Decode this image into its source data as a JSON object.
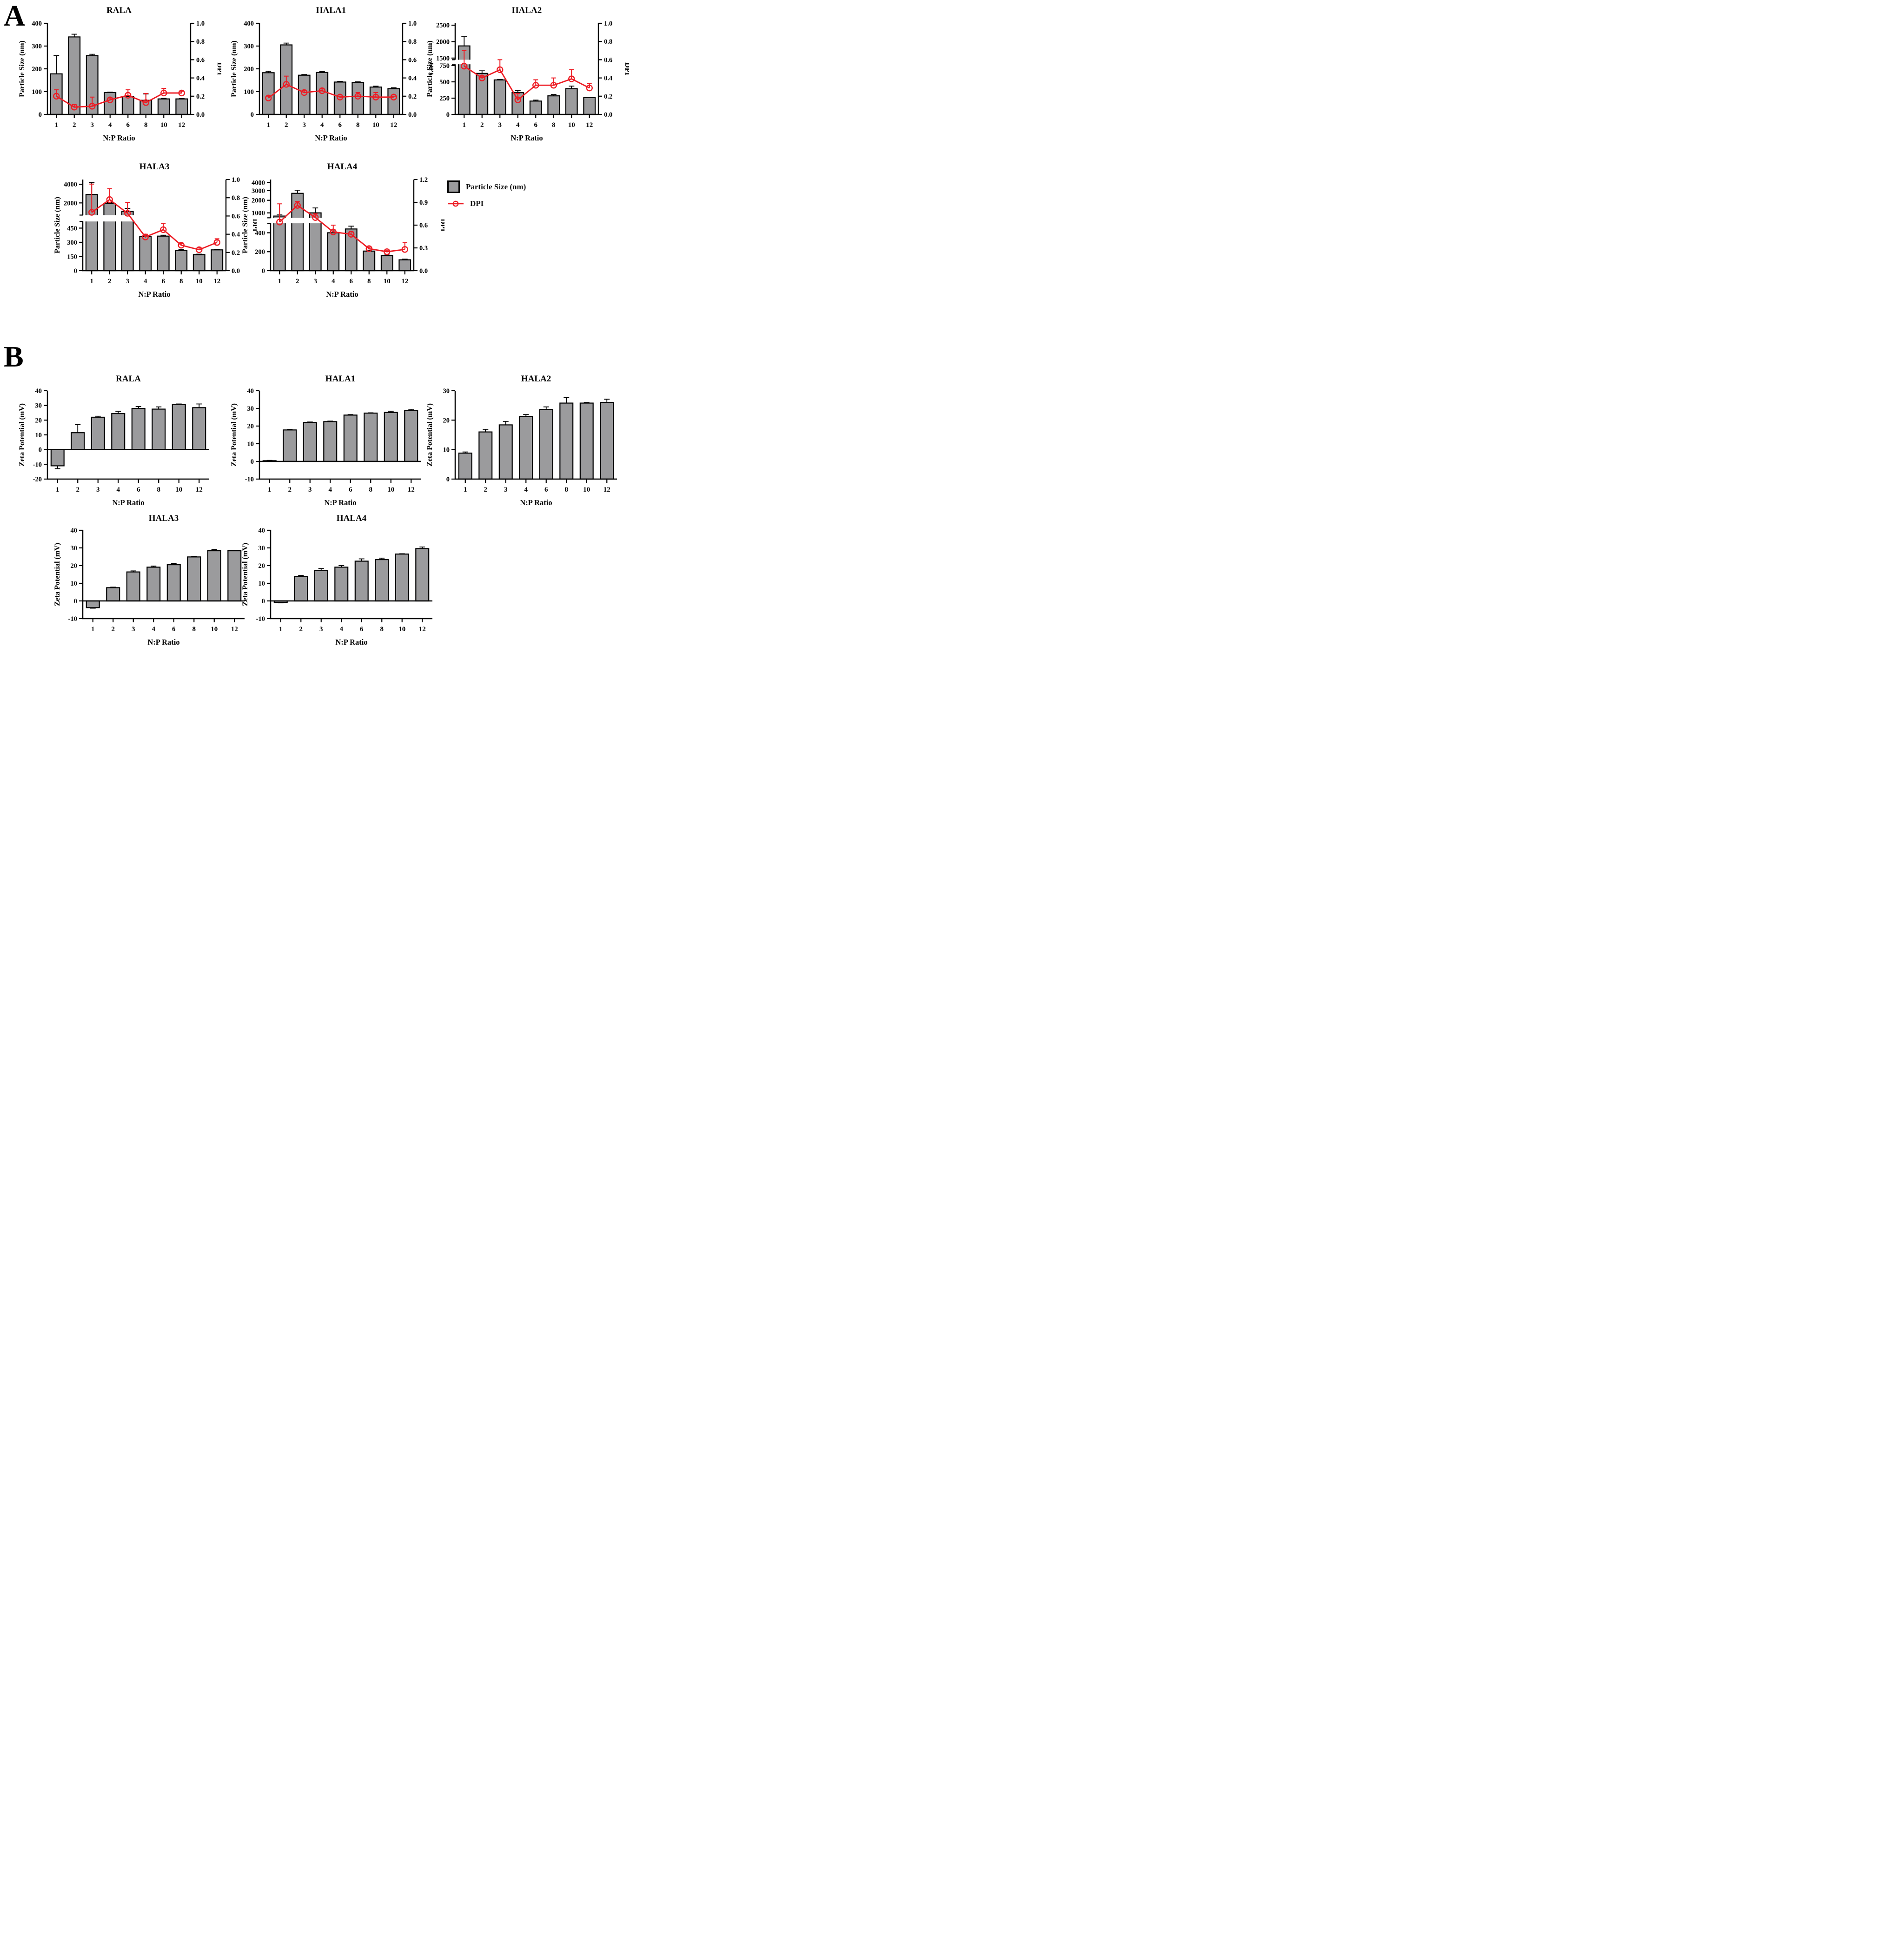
{
  "panel_a_label": "A",
  "panel_b_label": "B",
  "legend": {
    "particle_size_label": "Particle Size (nm)",
    "dpi_label": "DPI"
  },
  "colors": {
    "bar_fill": "#9b9b9d",
    "bar_edge": "#000000",
    "dpi_line": "#ed1c24",
    "axis": "#000000",
    "background": "#ffffff"
  },
  "categories": [
    "1",
    "2",
    "3",
    "4",
    "6",
    "8",
    "10",
    "12"
  ],
  "xlabel": "N:P Ratio",
  "chart_data": [
    {
      "id": "panelA-RALA",
      "panel": "A",
      "type": "bar+line",
      "title": "RALA",
      "ylabel": "Particle Size (nm)",
      "y2label": "DPI",
      "xlabel": "N:P Ratio",
      "bars": {
        "values": [
          178,
          340,
          258,
          96,
          78,
          62,
          68,
          68
        ],
        "errors": [
          80,
          12,
          6,
          2,
          4,
          28,
          3,
          2
        ]
      },
      "line": {
        "values": [
          0.2,
          0.08,
          0.09,
          0.16,
          0.21,
          0.13,
          0.235,
          0.235
        ],
        "errors": [
          0.07,
          0.03,
          0.1,
          0.02,
          0.06,
          0.1,
          0.05,
          0.02
        ]
      },
      "yaxis": {
        "segments": [
          {
            "min": 0,
            "max": 400,
            "frac": 1,
            "ticks": [
              0,
              100,
              200,
              300,
              400
            ],
            "labels": [
              "0",
              "100",
              "200",
              "300",
              "400"
            ]
          }
        ]
      },
      "y2axis": {
        "min": 0,
        "max": 1.0,
        "ticks": [
          0,
          0.2,
          0.4,
          0.6,
          0.8,
          1.0
        ],
        "labels": [
          "0.0",
          "0.2",
          "0.4",
          "0.6",
          "0.8",
          "1.0"
        ]
      }
    },
    {
      "id": "panelA-HALA1",
      "panel": "A",
      "type": "bar+line",
      "title": "HALA1",
      "ylabel": "Particle Size (nm)",
      "y2label": "DPI",
      "xlabel": "N:P Ratio",
      "bars": {
        "values": [
          183,
          305,
          172,
          184,
          142,
          140,
          120,
          113
        ],
        "errors": [
          6,
          8,
          3,
          4,
          3,
          3,
          4,
          4
        ]
      },
      "line": {
        "values": [
          0.18,
          0.33,
          0.24,
          0.26,
          0.19,
          0.2,
          0.19,
          0.19
        ],
        "errors": [
          0.02,
          0.09,
          0.02,
          0.02,
          0.01,
          0.04,
          0.05,
          0.01
        ]
      },
      "yaxis": {
        "segments": [
          {
            "min": 0,
            "max": 400,
            "frac": 1,
            "ticks": [
              0,
              100,
              200,
              300,
              400
            ],
            "labels": [
              "0",
              "100",
              "200",
              "300",
              "400"
            ]
          }
        ]
      },
      "y2axis": {
        "min": 0,
        "max": 1.0,
        "ticks": [
          0,
          0.2,
          0.4,
          0.6,
          0.8,
          1.0
        ],
        "labels": [
          "0.0",
          "0.2",
          "0.4",
          "0.6",
          "0.8",
          "1.0"
        ]
      }
    },
    {
      "id": "panelA-HALA2",
      "panel": "A",
      "type": "bar+line",
      "title": "HALA2",
      "ylabel": "Particle Size (nm)",
      "y2label": "DPI",
      "xlabel": "N:P Ratio",
      "bars": {
        "values": [
          1870,
          630,
          530,
          335,
          205,
          285,
          395,
          260
        ],
        "errors": [
          280,
          40,
          8,
          35,
          15,
          20,
          40,
          5
        ]
      },
      "line": {
        "values": [
          0.53,
          0.4,
          0.49,
          0.16,
          0.32,
          0.32,
          0.39,
          0.29
        ],
        "errors": [
          0.17,
          0.02,
          0.11,
          0.07,
          0.06,
          0.08,
          0.1,
          0.05
        ]
      },
      "yaxis": {
        "gapFrac": 0.05,
        "segments": [
          {
            "min": 0,
            "max": 770,
            "frac": 0.55,
            "ticks": [
              0,
              250,
              500,
              750
            ],
            "labels": [
              "0",
              "250",
              "500",
              "750"
            ]
          },
          {
            "min": 1450,
            "max": 2560,
            "frac": 0.4,
            "ticks": [
              1500,
              2000,
              2500
            ],
            "labels": [
              "1500",
              "2000",
              "2500"
            ]
          }
        ]
      },
      "y2axis": {
        "min": 0,
        "max": 1.0,
        "ticks": [
          0,
          0.2,
          0.4,
          0.6,
          0.8,
          1.0
        ],
        "labels": [
          "0.0",
          "0.2",
          "0.4",
          "0.6",
          "0.8",
          "1.0"
        ]
      }
    },
    {
      "id": "panelA-HALA3",
      "panel": "A",
      "type": "bar+line",
      "title": "HALA3",
      "ylabel": "Particle Size (nm)",
      "y2label": "DPI",
      "xlabel": "N:P Ratio",
      "bars": {
        "values": [
          2900,
          1950,
          1100,
          360,
          365,
          215,
          170,
          220
        ],
        "errors": [
          1300,
          100,
          300,
          15,
          10,
          8,
          5,
          5
        ]
      },
      "line": {
        "values": [
          0.64,
          0.78,
          0.63,
          0.37,
          0.45,
          0.28,
          0.23,
          0.31
        ],
        "errors": [
          0.31,
          0.12,
          0.12,
          0.03,
          0.07,
          0.02,
          0.02,
          0.04
        ]
      },
      "yaxis": {
        "gapFrac": 0.07,
        "segments": [
          {
            "min": 0,
            "max": 520,
            "frac": 0.54,
            "ticks": [
              0,
              150,
              300,
              450
            ],
            "labels": [
              "0",
              "150",
              "300",
              "450"
            ]
          },
          {
            "min": 700,
            "max": 4500,
            "frac": 0.39,
            "ticks": [
              2000,
              4000
            ],
            "labels": [
              "2000",
              "4000"
            ]
          }
        ]
      },
      "y2axis": {
        "min": 0,
        "max": 1.0,
        "ticks": [
          0,
          0.2,
          0.4,
          0.6,
          0.8,
          1.0
        ],
        "labels": [
          "0.0",
          "0.2",
          "0.4",
          "0.6",
          "0.8",
          "1.0"
        ]
      }
    },
    {
      "id": "panelA-HALA4",
      "panel": "A",
      "type": "bar+line",
      "title": "HALA4",
      "ylabel": "Particle Size (nm)",
      "y2label": "DPI",
      "xlabel": "N:P Ratio",
      "bars": {
        "values": [
          800,
          2700,
          1000,
          400,
          440,
          207,
          160,
          115
        ],
        "errors": [
          70,
          350,
          350,
          20,
          30,
          10,
          5,
          8
        ]
      },
      "line": {
        "values": [
          0.64,
          0.86,
          0.7,
          0.51,
          0.48,
          0.29,
          0.25,
          0.28
        ],
        "errors": [
          0.24,
          0.05,
          0.05,
          0.09,
          0.04,
          0.02,
          0.02,
          0.09
        ]
      },
      "yaxis": {
        "gapFrac": 0.06,
        "segments": [
          {
            "min": 0,
            "max": 500,
            "frac": 0.52,
            "ticks": [
              0,
              200,
              400
            ],
            "labels": [
              "0",
              "200",
              "400"
            ]
          },
          {
            "min": 700,
            "max": 4400,
            "frac": 0.42,
            "scale": "sqrt",
            "ticks": [
              1000,
              2000,
              3000,
              4000
            ],
            "labels": [
              "1000",
              "2000",
              "3000",
              "4000"
            ]
          }
        ]
      },
      "y2axis": {
        "min": 0,
        "max": 1.2,
        "ticks": [
          0,
          0.3,
          0.6,
          0.9,
          1.2
        ],
        "labels": [
          "0.0",
          "0.3",
          "0.6",
          "0.9",
          "1.2"
        ]
      }
    },
    {
      "id": "panelB-RALA",
      "panel": "B",
      "type": "bar",
      "title": "RALA",
      "ylabel": "Zeta Potential (mV)",
      "xlabel": "N:P Ratio",
      "bars": {
        "values": [
          -11,
          11.5,
          22,
          24.5,
          28,
          27.5,
          30.7,
          28.5
        ],
        "errors": [
          2,
          5.5,
          0.7,
          1.5,
          1.3,
          1.5,
          0.3,
          2.5
        ]
      },
      "yaxis": {
        "segments": [
          {
            "min": -20,
            "max": 40,
            "frac": 1,
            "ticks": [
              -20,
              -10,
              0,
              10,
              20,
              30,
              40
            ],
            "labels": [
              "-20",
              "-10",
              "0",
              "10",
              "20",
              "30",
              "40"
            ]
          }
        ]
      }
    },
    {
      "id": "panelB-HALA1",
      "panel": "B",
      "type": "bar",
      "title": "HALA1",
      "ylabel": "Zeta Potential (mV)",
      "xlabel": "N:P Ratio",
      "bars": {
        "values": [
          0.4,
          17.8,
          22,
          22.5,
          26.2,
          27.3,
          27.7,
          28.9
        ],
        "errors": [
          0.2,
          0.3,
          0.3,
          0.3,
          0.3,
          0.2,
          0.7,
          0.6
        ]
      },
      "yaxis": {
        "segments": [
          {
            "min": -10,
            "max": 40,
            "frac": 1,
            "ticks": [
              -10,
              0,
              10,
              20,
              30,
              40
            ],
            "labels": [
              "-10",
              "0",
              "10",
              "20",
              "30",
              "40"
            ]
          }
        ]
      }
    },
    {
      "id": "panelB-HALA2",
      "panel": "B",
      "type": "bar",
      "title": "HALA2",
      "ylabel": "Zeta Potential (mV)",
      "xlabel": "N:P Ratio",
      "bars": {
        "values": [
          8.8,
          16,
          18.4,
          21.2,
          23.6,
          25.8,
          25.8,
          26.0
        ],
        "errors": [
          0.4,
          0.9,
          1.2,
          0.7,
          0.9,
          1.9,
          0.2,
          1.1
        ]
      },
      "yaxis": {
        "segments": [
          {
            "min": 0,
            "max": 30,
            "frac": 1,
            "ticks": [
              0,
              10,
              20,
              30
            ],
            "labels": [
              "0",
              "10",
              "20",
              "30"
            ]
          }
        ]
      }
    },
    {
      "id": "panelB-HALA3",
      "panel": "B",
      "type": "bar",
      "title": "HALA3",
      "ylabel": "Zeta Potential (mV)",
      "xlabel": "N:P Ratio",
      "bars": {
        "values": [
          -3.8,
          7.5,
          16.4,
          19.1,
          20.5,
          24.9,
          28.4,
          28.4
        ],
        "errors": [
          0.3,
          0.3,
          0.6,
          0.6,
          0.6,
          0.3,
          0.6,
          0.2
        ]
      },
      "yaxis": {
        "segments": [
          {
            "min": -10,
            "max": 40,
            "frac": 1,
            "ticks": [
              -10,
              0,
              10,
              20,
              30,
              40
            ],
            "labels": [
              "-10",
              "0",
              "10",
              "20",
              "30",
              "40"
            ]
          }
        ]
      }
    },
    {
      "id": "panelB-HALA4",
      "panel": "B",
      "type": "bar",
      "title": "HALA4",
      "ylabel": "Zeta Potential (mV)",
      "xlabel": "N:P Ratio",
      "bars": {
        "values": [
          -0.8,
          13.8,
          17.3,
          19.1,
          22.5,
          23.4,
          26.5,
          29.6
        ],
        "errors": [
          0.3,
          0.6,
          1.0,
          0.9,
          1.3,
          0.8,
          0.2,
          0.9
        ]
      },
      "yaxis": {
        "segments": [
          {
            "min": -10,
            "max": 40,
            "frac": 1,
            "ticks": [
              -10,
              0,
              10,
              20,
              30,
              40
            ],
            "labels": [
              "-10",
              "0",
              "10",
              "20",
              "30",
              "40"
            ]
          }
        ]
      }
    }
  ]
}
